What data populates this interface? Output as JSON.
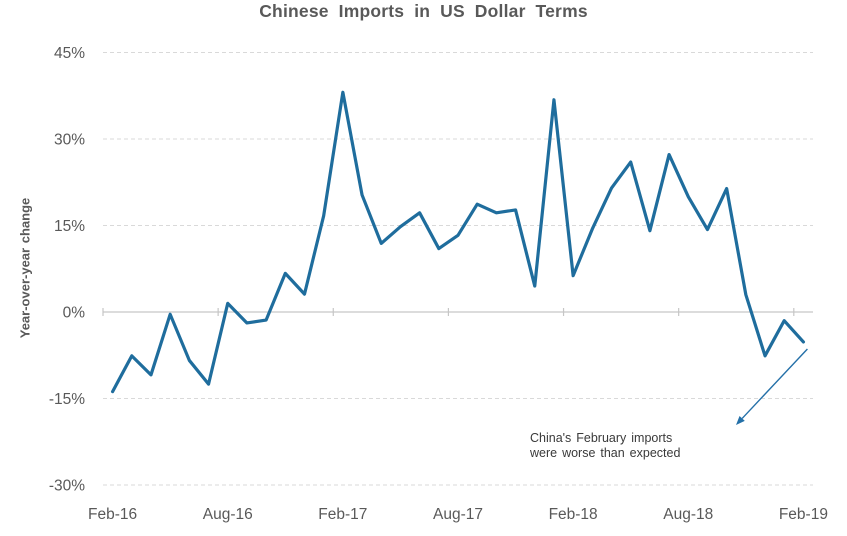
{
  "colors": {
    "line": "#1f6d9d",
    "arrow": "#2470a8",
    "grid_dashed": "#d9d9d9",
    "zero_axis": "#c6c6c6",
    "axis_text": "#595959",
    "annotation_text": "#3a3a3a",
    "title_text": "#595959",
    "background": "#ffffff"
  },
  "annotation": {
    "lines": [
      "China's February imports",
      "were worse than expected"
    ]
  },
  "chart_data": {
    "type": "line",
    "title": "Chinese Imports in US Dollar Terms",
    "xlabel": "",
    "ylabel": "Year-over-year change",
    "x": [
      "Feb-16",
      "Mar-16",
      "Apr-16",
      "May-16",
      "Jun-16",
      "Jul-16",
      "Aug-16",
      "Sep-16",
      "Oct-16",
      "Nov-16",
      "Dec-16",
      "Jan-17",
      "Feb-17",
      "Mar-17",
      "Apr-17",
      "May-17",
      "Jun-17",
      "Jul-17",
      "Aug-17",
      "Sep-17",
      "Oct-17",
      "Nov-17",
      "Dec-17",
      "Jan-18",
      "Feb-18",
      "Mar-18",
      "Apr-18",
      "May-18",
      "Jun-18",
      "Jul-18",
      "Aug-18",
      "Sep-18",
      "Oct-18",
      "Nov-18",
      "Dec-18",
      "Jan-19",
      "Feb-19"
    ],
    "series": [
      {
        "name": "Chinese imports, year-over-year change (USD terms)",
        "values": [
          -13.8,
          -7.6,
          -10.9,
          -0.4,
          -8.4,
          -12.5,
          1.5,
          -1.9,
          -1.4,
          6.7,
          3.1,
          16.7,
          38.1,
          20.3,
          11.9,
          14.8,
          17.2,
          11.0,
          13.3,
          18.7,
          17.2,
          17.7,
          4.5,
          36.8,
          6.3,
          14.4,
          21.5,
          26.0,
          14.1,
          27.3,
          20.0,
          14.3,
          21.4,
          3.0,
          -7.6,
          -1.5,
          -5.2
        ]
      }
    ],
    "ylim": [
      -30,
      45
    ],
    "yticks": [
      45,
      30,
      15,
      0,
      -15,
      -30
    ],
    "ytick_labels": [
      "45%",
      "30%",
      "15%",
      "0%",
      "-15%",
      "-30%"
    ],
    "xtick_labels": [
      "Feb-16",
      "Aug-16",
      "Feb-17",
      "Aug-17",
      "Feb-18",
      "Aug-18",
      "Feb-19"
    ],
    "xtick_every": 6,
    "grid": "horizontal dashed, solid line at 0%",
    "legend": "none",
    "annotation": {
      "text": "China's February imports were worse than expected",
      "arrow": "from Feb-19 data point down-left toward the text"
    }
  }
}
